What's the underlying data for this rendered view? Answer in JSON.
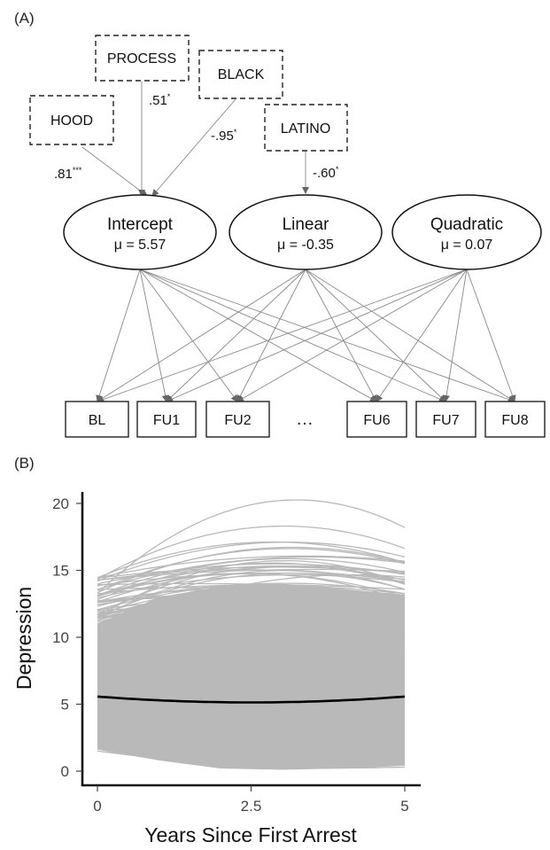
{
  "panel_a": {
    "label": "(A)",
    "covariates": [
      {
        "id": "hood",
        "label": "HOOD",
        "coef": ".81",
        "sig": "***",
        "target": "intercept"
      },
      {
        "id": "process",
        "label": "PROCESS",
        "coef": ".51",
        "sig": "*",
        "target": "intercept"
      },
      {
        "id": "black",
        "label": "BLACK",
        "coef": "-.95",
        "sig": "*",
        "target": "intercept"
      },
      {
        "id": "latino",
        "label": "LATINO",
        "coef": "-.60",
        "sig": "*",
        "target": "linear"
      }
    ],
    "latents": [
      {
        "id": "intercept",
        "name": "Intercept",
        "mean": "μ = 5.57"
      },
      {
        "id": "linear",
        "name": "Linear",
        "mean": "μ = -0.35"
      },
      {
        "id": "quadratic",
        "name": "Quadratic",
        "mean": "μ = 0.07"
      }
    ],
    "observed": [
      "BL",
      "FU1",
      "FU2",
      "FU6",
      "FU7",
      "FU8"
    ],
    "ellipsis": "…"
  },
  "panel_b": {
    "label": "(B)"
  },
  "chart_data": {
    "type": "line",
    "xlabel": "Years Since First Arrest",
    "ylabel": "Depression",
    "xlim": [
      0,
      5
    ],
    "ylim": [
      0,
      20
    ],
    "x_ticks": [
      "0",
      "2.5",
      "5"
    ],
    "y_ticks": [
      "0",
      "5",
      "10",
      "15",
      "20"
    ],
    "x_tick_values": [
      0,
      2.5,
      5
    ],
    "y_tick_values": [
      0,
      5,
      10,
      15,
      20
    ],
    "grid": false,
    "series": [
      {
        "id": "mean",
        "coefficients": {
          "intercept": 5.57,
          "linear": -0.35,
          "quadratic": 0.07
        },
        "points": [
          [
            0,
            5.57
          ],
          [
            1,
            5.29
          ],
          [
            2,
            5.15
          ],
          [
            2.5,
            5.13
          ],
          [
            3,
            5.15
          ],
          [
            4,
            5.29
          ],
          [
            5,
            5.57
          ]
        ],
        "color": "#000000"
      }
    ],
    "individual_trajectories": {
      "color": "#b9b9b9",
      "shape": "quadratic",
      "examples": [
        {
          "start": 13.3,
          "end": 18.2,
          "peak": 19.9
        },
        {
          "start": 14.2,
          "end": 16.0,
          "peak": 17.0
        },
        {
          "start": 13.5,
          "end": 15.5,
          "peak": 16.5
        },
        {
          "start": 12.8,
          "end": 14.0,
          "peak": 15.5
        },
        {
          "start": 11.0,
          "end": 12.5,
          "peak": 13.5
        },
        {
          "start": 10.5,
          "end": 14.5,
          "peak": 14.0
        },
        {
          "start": 1.7,
          "end": 0.3,
          "peak": 0.3
        },
        {
          "start": 1.5,
          "end": 0.5,
          "peak": 0.7
        }
      ],
      "band_upper": [
        [
          0,
          11.0
        ],
        [
          1,
          13.0
        ],
        [
          2,
          13.8
        ],
        [
          3,
          14.0
        ],
        [
          4,
          13.6
        ],
        [
          5,
          13.2
        ]
      ],
      "band_lower": [
        [
          0,
          1.6
        ],
        [
          1,
          0.8
        ],
        [
          2,
          0.2
        ],
        [
          3,
          0.1
        ],
        [
          4,
          0.2
        ],
        [
          5,
          0.4
        ]
      ]
    }
  }
}
